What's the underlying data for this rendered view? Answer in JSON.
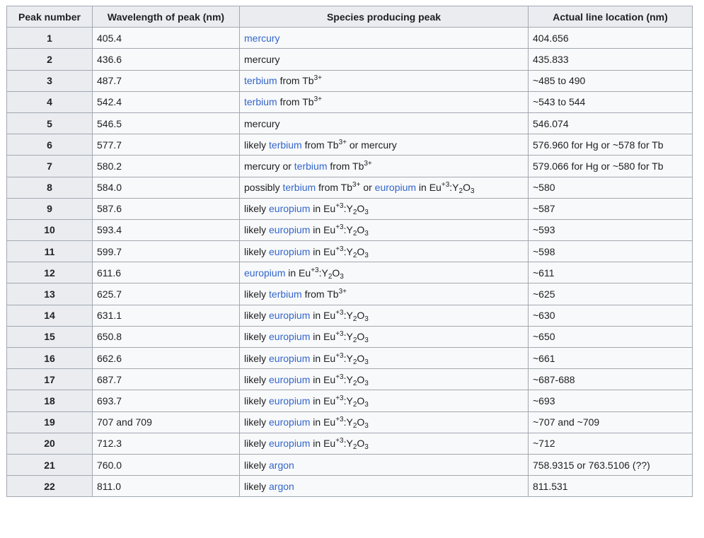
{
  "headers": [
    "Peak number",
    "Wavelength of peak (nm)",
    "Species producing peak",
    "Actual line location (nm)"
  ],
  "rows": [
    {
      "n": "1",
      "wl": "405.4",
      "species": [
        {
          "t": "link",
          "v": "mercury"
        }
      ],
      "actual": "404.656"
    },
    {
      "n": "2",
      "wl": "436.6",
      "species": [
        {
          "t": "text",
          "v": "mercury"
        }
      ],
      "actual": "435.833"
    },
    {
      "n": "3",
      "wl": "487.7",
      "species": [
        {
          "t": "link",
          "v": "terbium"
        },
        {
          "t": "text",
          "v": " from Tb"
        },
        {
          "t": "sup",
          "v": "3+"
        }
      ],
      "actual": "~485 to 490"
    },
    {
      "n": "4",
      "wl": "542.4",
      "species": [
        {
          "t": "link",
          "v": "terbium"
        },
        {
          "t": "text",
          "v": " from Tb"
        },
        {
          "t": "sup",
          "v": "3+"
        }
      ],
      "actual": "~543 to 544"
    },
    {
      "n": "5",
      "wl": "546.5",
      "species": [
        {
          "t": "text",
          "v": "mercury"
        }
      ],
      "actual": "546.074"
    },
    {
      "n": "6",
      "wl": "577.7",
      "species": [
        {
          "t": "text",
          "v": "likely "
        },
        {
          "t": "link",
          "v": "terbium"
        },
        {
          "t": "text",
          "v": " from Tb"
        },
        {
          "t": "sup",
          "v": "3+"
        },
        {
          "t": "text",
          "v": " or mercury"
        }
      ],
      "actual": "576.960 for Hg or ~578 for Tb"
    },
    {
      "n": "7",
      "wl": "580.2",
      "species": [
        {
          "t": "text",
          "v": "mercury or "
        },
        {
          "t": "link",
          "v": "terbium"
        },
        {
          "t": "text",
          "v": " from Tb"
        },
        {
          "t": "sup",
          "v": "3+"
        }
      ],
      "actual": "579.066 for Hg or ~580 for Tb"
    },
    {
      "n": "8",
      "wl": "584.0",
      "species": [
        {
          "t": "text",
          "v": "possibly "
        },
        {
          "t": "link",
          "v": "terbium"
        },
        {
          "t": "text",
          "v": " from Tb"
        },
        {
          "t": "sup",
          "v": "3+"
        },
        {
          "t": "text",
          "v": " or "
        },
        {
          "t": "link",
          "v": "europium"
        },
        {
          "t": "text",
          "v": " in Eu"
        },
        {
          "t": "sup",
          "v": "+3"
        },
        {
          "t": "text",
          "v": ":Y"
        },
        {
          "t": "sub",
          "v": "2"
        },
        {
          "t": "text",
          "v": "O"
        },
        {
          "t": "sub",
          "v": "3"
        }
      ],
      "actual": "~580"
    },
    {
      "n": "9",
      "wl": "587.6",
      "species": [
        {
          "t": "text",
          "v": "likely "
        },
        {
          "t": "link",
          "v": "europium"
        },
        {
          "t": "text",
          "v": " in Eu"
        },
        {
          "t": "sup",
          "v": "+3"
        },
        {
          "t": "text",
          "v": ":Y"
        },
        {
          "t": "sub",
          "v": "2"
        },
        {
          "t": "text",
          "v": "O"
        },
        {
          "t": "sub",
          "v": "3"
        }
      ],
      "actual": "~587"
    },
    {
      "n": "10",
      "wl": "593.4",
      "species": [
        {
          "t": "text",
          "v": "likely "
        },
        {
          "t": "link",
          "v": "europium"
        },
        {
          "t": "text",
          "v": " in Eu"
        },
        {
          "t": "sup",
          "v": "+3"
        },
        {
          "t": "text",
          "v": ":Y"
        },
        {
          "t": "sub",
          "v": "2"
        },
        {
          "t": "text",
          "v": "O"
        },
        {
          "t": "sub",
          "v": "3"
        }
      ],
      "actual": "~593"
    },
    {
      "n": "11",
      "wl": "599.7",
      "species": [
        {
          "t": "text",
          "v": "likely "
        },
        {
          "t": "link",
          "v": "europium"
        },
        {
          "t": "text",
          "v": " in Eu"
        },
        {
          "t": "sup",
          "v": "+3"
        },
        {
          "t": "text",
          "v": ":Y"
        },
        {
          "t": "sub",
          "v": "2"
        },
        {
          "t": "text",
          "v": "O"
        },
        {
          "t": "sub",
          "v": "3"
        }
      ],
      "actual": "~598"
    },
    {
      "n": "12",
      "wl": "611.6",
      "species": [
        {
          "t": "link",
          "v": "europium"
        },
        {
          "t": "text",
          "v": " in Eu"
        },
        {
          "t": "sup",
          "v": "+3"
        },
        {
          "t": "text",
          "v": ":Y"
        },
        {
          "t": "sub",
          "v": "2"
        },
        {
          "t": "text",
          "v": "O"
        },
        {
          "t": "sub",
          "v": "3"
        }
      ],
      "actual": "~611"
    },
    {
      "n": "13",
      "wl": "625.7",
      "species": [
        {
          "t": "text",
          "v": "likely "
        },
        {
          "t": "link",
          "v": "terbium"
        },
        {
          "t": "text",
          "v": " from Tb"
        },
        {
          "t": "sup",
          "v": "3+"
        }
      ],
      "actual": "~625"
    },
    {
      "n": "14",
      "wl": "631.1",
      "species": [
        {
          "t": "text",
          "v": "likely "
        },
        {
          "t": "link",
          "v": "europium"
        },
        {
          "t": "text",
          "v": " in Eu"
        },
        {
          "t": "sup",
          "v": "+3"
        },
        {
          "t": "text",
          "v": ":Y"
        },
        {
          "t": "sub",
          "v": "2"
        },
        {
          "t": "text",
          "v": "O"
        },
        {
          "t": "sub",
          "v": "3"
        }
      ],
      "actual": "~630"
    },
    {
      "n": "15",
      "wl": "650.8",
      "species": [
        {
          "t": "text",
          "v": "likely "
        },
        {
          "t": "link",
          "v": "europium"
        },
        {
          "t": "text",
          "v": " in Eu"
        },
        {
          "t": "sup",
          "v": "+3"
        },
        {
          "t": "text",
          "v": ":Y"
        },
        {
          "t": "sub",
          "v": "2"
        },
        {
          "t": "text",
          "v": "O"
        },
        {
          "t": "sub",
          "v": "3"
        }
      ],
      "actual": "~650"
    },
    {
      "n": "16",
      "wl": "662.6",
      "species": [
        {
          "t": "text",
          "v": "likely "
        },
        {
          "t": "link",
          "v": "europium"
        },
        {
          "t": "text",
          "v": " in Eu"
        },
        {
          "t": "sup",
          "v": "+3"
        },
        {
          "t": "text",
          "v": ":Y"
        },
        {
          "t": "sub",
          "v": "2"
        },
        {
          "t": "text",
          "v": "O"
        },
        {
          "t": "sub",
          "v": "3"
        }
      ],
      "actual": "~661"
    },
    {
      "n": "17",
      "wl": "687.7",
      "species": [
        {
          "t": "text",
          "v": "likely "
        },
        {
          "t": "link",
          "v": "europium"
        },
        {
          "t": "text",
          "v": " in Eu"
        },
        {
          "t": "sup",
          "v": "+3"
        },
        {
          "t": "text",
          "v": ":Y"
        },
        {
          "t": "sub",
          "v": "2"
        },
        {
          "t": "text",
          "v": "O"
        },
        {
          "t": "sub",
          "v": "3"
        }
      ],
      "actual": "~687-688"
    },
    {
      "n": "18",
      "wl": "693.7",
      "species": [
        {
          "t": "text",
          "v": "likely "
        },
        {
          "t": "link",
          "v": "europium"
        },
        {
          "t": "text",
          "v": " in Eu"
        },
        {
          "t": "sup",
          "v": "+3"
        },
        {
          "t": "text",
          "v": ":Y"
        },
        {
          "t": "sub",
          "v": "2"
        },
        {
          "t": "text",
          "v": "O"
        },
        {
          "t": "sub",
          "v": "3"
        }
      ],
      "actual": "~693"
    },
    {
      "n": "19",
      "wl": "707 and 709",
      "species": [
        {
          "t": "text",
          "v": "likely "
        },
        {
          "t": "link",
          "v": "europium"
        },
        {
          "t": "text",
          "v": " in Eu"
        },
        {
          "t": "sup",
          "v": "+3"
        },
        {
          "t": "text",
          "v": ":Y"
        },
        {
          "t": "sub",
          "v": "2"
        },
        {
          "t": "text",
          "v": "O"
        },
        {
          "t": "sub",
          "v": "3"
        }
      ],
      "actual": "~707 and ~709"
    },
    {
      "n": "20",
      "wl": "712.3",
      "species": [
        {
          "t": "text",
          "v": "likely "
        },
        {
          "t": "link",
          "v": "europium"
        },
        {
          "t": "text",
          "v": " in Eu"
        },
        {
          "t": "sup",
          "v": "+3"
        },
        {
          "t": "text",
          "v": ":Y"
        },
        {
          "t": "sub",
          "v": "2"
        },
        {
          "t": "text",
          "v": "O"
        },
        {
          "t": "sub",
          "v": "3"
        }
      ],
      "actual": "~712"
    },
    {
      "n": "21",
      "wl": "760.0",
      "species": [
        {
          "t": "text",
          "v": "likely "
        },
        {
          "t": "link",
          "v": "argon"
        }
      ],
      "actual": "758.9315 or 763.5106 (??)"
    },
    {
      "n": "22",
      "wl": "811.0",
      "species": [
        {
          "t": "text",
          "v": "likely "
        },
        {
          "t": "link",
          "v": "argon"
        }
      ],
      "actual": "811.531"
    }
  ],
  "colors": {
    "link": "#3366cc",
    "header_bg": "#eaecf0",
    "table_bg": "#f8f9fa",
    "border": "#a2a9b1"
  }
}
